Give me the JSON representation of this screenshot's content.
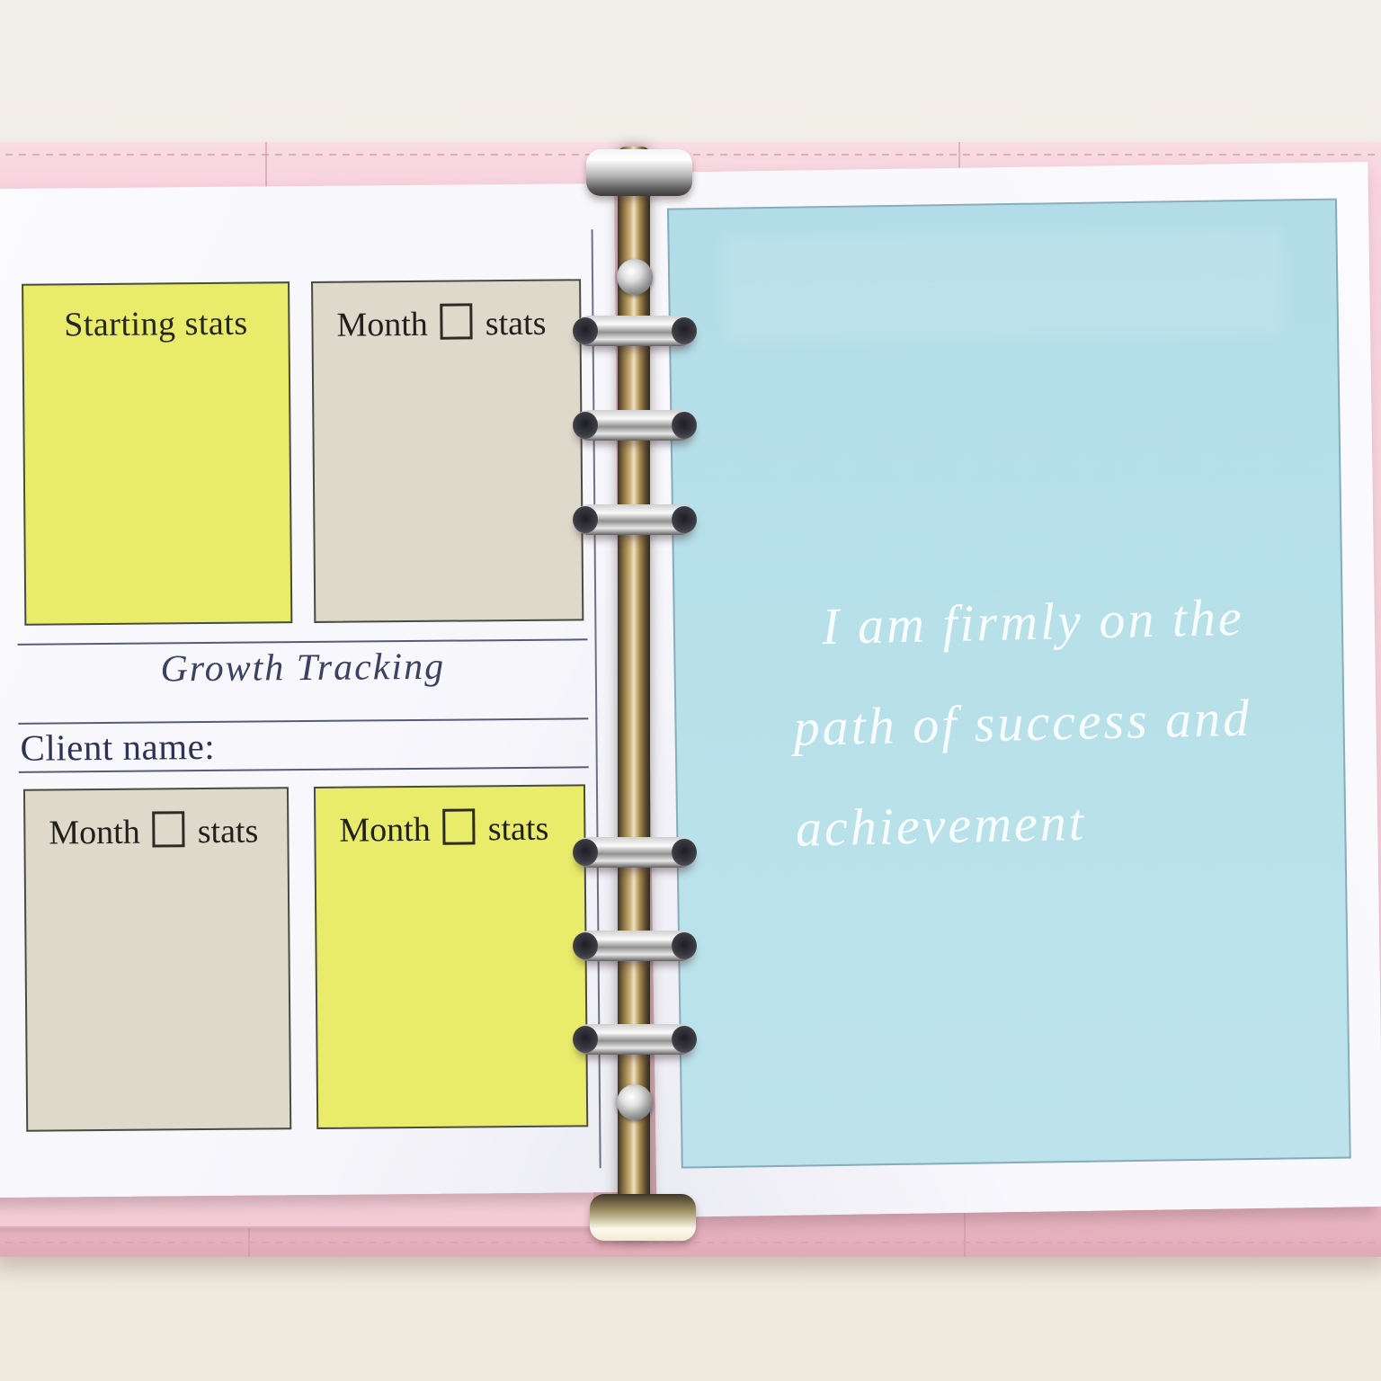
{
  "left_page": {
    "section_title": "Growth Tracking",
    "client_name_label": "Client name:",
    "boxes": [
      {
        "label": "Starting stats",
        "color": "yellow",
        "has_checkbox": false
      },
      {
        "label_before": "Month",
        "label_after": "stats",
        "color": "beige",
        "has_checkbox": true
      },
      {
        "label_before": "Month",
        "label_after": "stats",
        "color": "beige",
        "has_checkbox": true
      },
      {
        "label_before": "Month",
        "label_after": "stats",
        "color": "yellow",
        "has_checkbox": true
      }
    ]
  },
  "right_page": {
    "quote_lines": [
      "I am firmly on the",
      "path of success and",
      "achievement"
    ]
  },
  "binder": {
    "ring_count": 6
  },
  "colors": {
    "binder_pink": "#f6cfda",
    "accent_yellow": "#e9ec6a",
    "accent_beige": "#ded9cb",
    "insert_blue": "#b7e0e9",
    "ink_navy": "#343c5c",
    "quote_white": "#fcfeff",
    "desk_cream": "#f1ede4",
    "metal_chrome": "#d9d9d9"
  }
}
